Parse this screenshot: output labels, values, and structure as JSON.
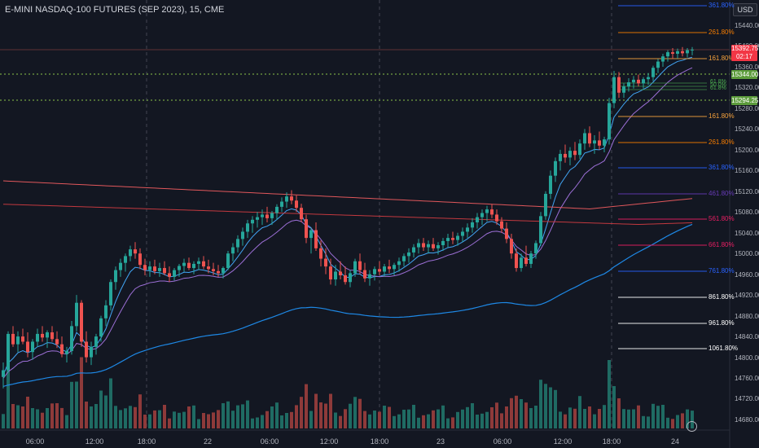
{
  "header": {
    "symbol": "E-MINI NASDAQ-100 FUTURES (SEP 2023), 15, CME",
    "currency": "USD"
  },
  "price_axis": {
    "ticks": [
      "15440.00",
      "15400.00",
      "15360.00",
      "15320.00",
      "15280.00",
      "15240.00",
      "15200.00",
      "15160.00",
      "15120.00",
      "15080.00",
      "15040.00",
      "15000.00",
      "14960.00",
      "14920.00",
      "14880.00",
      "14840.00",
      "14800.00",
      "14760.00",
      "14720.00",
      "14680.00"
    ],
    "last_price": "15392.75",
    "countdown": "02:17",
    "tag_upper": "15344.00",
    "tag_lower": "15294.25",
    "colors": {
      "last": "#f23645",
      "tag": "#5d9c3c"
    }
  },
  "time_axis": {
    "ticks": [
      "06:00",
      "12:00",
      "18:00",
      "22",
      "06:00",
      "12:00",
      "18:00",
      "23",
      "06:00",
      "12:00",
      "18:00",
      "24"
    ]
  },
  "fib_levels": [
    {
      "label": "361.80%",
      "color": "#2962ff"
    },
    {
      "label": "261.80%",
      "color": "#f57c00"
    },
    {
      "label": "161.80%",
      "color": "#f5a13c"
    },
    {
      "label": "61.8%",
      "color": "#4caf50"
    },
    {
      "label": "50.0%",
      "color": "#4caf50"
    },
    {
      "label": "61.8%",
      "color": "#4caf50"
    },
    {
      "label": "161.80%",
      "color": "#f5a13c"
    },
    {
      "label": "261.80%",
      "color": "#f57c00"
    },
    {
      "label": "361.80%",
      "color": "#2962ff"
    },
    {
      "label": "461.80%",
      "color": "#673ab7"
    },
    {
      "label": "561.80%",
      "color": "#e91e63"
    },
    {
      "label": "661.80%",
      "color": "#e91e63"
    },
    {
      "label": "761.80%",
      "color": "#2962ff"
    },
    {
      "label": "861.80%",
      "color": "#ffffff"
    },
    {
      "label": "961.80%",
      "color": "#ffffff"
    },
    {
      "label": "1061.80%",
      "color": "#ffffff"
    }
  ],
  "colors": {
    "background": "#131722",
    "up": "#26a69a",
    "down": "#ef5350",
    "vol_up": "#1f6b63",
    "vol_down": "#8e3a3a"
  },
  "series_data": [
    {
      "t": 0,
      "o": 14762,
      "h": 14790,
      "l": 14740,
      "c": 14775
    },
    {
      "t": 6,
      "o": 14775,
      "h": 14850,
      "l": 14770,
      "c": 14845
    },
    {
      "t": 12,
      "o": 14845,
      "h": 14860,
      "l": 14820,
      "c": 14825
    },
    {
      "t": 18,
      "o": 14825,
      "h": 14850,
      "l": 14810,
      "c": 14840
    },
    {
      "t": 24,
      "o": 14840,
      "h": 14855,
      "l": 14825,
      "c": 14830
    },
    {
      "t": 30,
      "o": 14830,
      "h": 14848,
      "l": 14800,
      "c": 14810
    },
    {
      "t": 36,
      "o": 14810,
      "h": 14835,
      "l": 14795,
      "c": 14830
    },
    {
      "t": 42,
      "o": 14830,
      "h": 14855,
      "l": 14820,
      "c": 14845
    },
    {
      "t": 48,
      "o": 14845,
      "h": 14860,
      "l": 14830,
      "c": 14838
    },
    {
      "t": 54,
      "o": 14838,
      "h": 14852,
      "l": 14818,
      "c": 14848
    },
    {
      "t": 60,
      "o": 14848,
      "h": 14860,
      "l": 14830,
      "c": 14835
    },
    {
      "t": 66,
      "o": 14835,
      "h": 14850,
      "l": 14818,
      "c": 14825
    },
    {
      "t": 72,
      "o": 14825,
      "h": 14840,
      "l": 14800,
      "c": 14806
    },
    {
      "t": 78,
      "o": 14806,
      "h": 14820,
      "l": 14790,
      "c": 14812
    },
    {
      "t": 84,
      "o": 14812,
      "h": 14870,
      "l": 14805,
      "c": 14860
    },
    {
      "t": 90,
      "o": 14860,
      "h": 14920,
      "l": 14850,
      "c": 14905
    },
    {
      "t": 96,
      "o": 14905,
      "h": 14910,
      "l": 14820,
      "c": 14830
    },
    {
      "t": 102,
      "o": 14830,
      "h": 14850,
      "l": 14790,
      "c": 14800
    },
    {
      "t": 108,
      "o": 14800,
      "h": 14830,
      "l": 14785,
      "c": 14820
    },
    {
      "t": 114,
      "o": 14820,
      "h": 14845,
      "l": 14805,
      "c": 14840
    },
    {
      "t": 120,
      "o": 14840,
      "h": 14880,
      "l": 14830,
      "c": 14875
    },
    {
      "t": 126,
      "o": 14875,
      "h": 14910,
      "l": 14860,
      "c": 14900
    },
    {
      "t": 132,
      "o": 14900,
      "h": 14950,
      "l": 14890,
      "c": 14945
    },
    {
      "t": 138,
      "o": 14945,
      "h": 14975,
      "l": 14930,
      "c": 14968
    },
    {
      "t": 144,
      "o": 14968,
      "h": 14990,
      "l": 14955,
      "c": 14982
    },
    {
      "t": 150,
      "o": 14982,
      "h": 15000,
      "l": 14965,
      "c": 14995
    },
    {
      "t": 156,
      "o": 14995,
      "h": 15015,
      "l": 14985,
      "c": 15008
    },
    {
      "t": 162,
      "o": 15008,
      "h": 15022,
      "l": 14990,
      "c": 15000
    },
    {
      "t": 168,
      "o": 15000,
      "h": 15010,
      "l": 14970,
      "c": 14978
    },
    {
      "t": 174,
      "o": 14978,
      "h": 14990,
      "l": 14958,
      "c": 14968
    },
    {
      "t": 180,
      "o": 14968,
      "h": 14985,
      "l": 14955,
      "c": 14975
    },
    {
      "t": 186,
      "o": 14975,
      "h": 14988,
      "l": 14960,
      "c": 14966
    },
    {
      "t": 192,
      "o": 14966,
      "h": 14982,
      "l": 14955,
      "c": 14972
    },
    {
      "t": 198,
      "o": 14972,
      "h": 14985,
      "l": 14958,
      "c": 14962
    },
    {
      "t": 204,
      "o": 14962,
      "h": 14975,
      "l": 14945,
      "c": 14955
    },
    {
      "t": 210,
      "o": 14955,
      "h": 14972,
      "l": 14948,
      "c": 14968
    },
    {
      "t": 216,
      "o": 14968,
      "h": 14980,
      "l": 14955,
      "c": 14976
    },
    {
      "t": 222,
      "o": 14976,
      "h": 14990,
      "l": 14965,
      "c": 14982
    },
    {
      "t": 228,
      "o": 14982,
      "h": 14992,
      "l": 14968,
      "c": 14972
    },
    {
      "t": 234,
      "o": 14972,
      "h": 14985,
      "l": 14960,
      "c": 14980
    },
    {
      "t": 240,
      "o": 14980,
      "h": 14992,
      "l": 14968,
      "c": 14985
    },
    {
      "t": 246,
      "o": 14985,
      "h": 14995,
      "l": 14970,
      "c": 14975
    },
    {
      "t": 252,
      "o": 14975,
      "h": 14988,
      "l": 14962,
      "c": 14970
    },
    {
      "t": 258,
      "o": 14970,
      "h": 14982,
      "l": 14958,
      "c": 14966
    },
    {
      "t": 264,
      "o": 14966,
      "h": 14978,
      "l": 14955,
      "c": 14962
    },
    {
      "t": 270,
      "o": 14962,
      "h": 14975,
      "l": 14952,
      "c": 14972
    },
    {
      "t": 276,
      "o": 14972,
      "h": 15005,
      "l": 14968,
      "c": 15000
    },
    {
      "t": 282,
      "o": 15000,
      "h": 15020,
      "l": 14985,
      "c": 15012
    },
    {
      "t": 288,
      "o": 15012,
      "h": 15035,
      "l": 15002,
      "c": 15028
    },
    {
      "t": 294,
      "o": 15028,
      "h": 15050,
      "l": 15015,
      "c": 15042
    },
    {
      "t": 300,
      "o": 15042,
      "h": 15065,
      "l": 15030,
      "c": 15058
    },
    {
      "t": 306,
      "o": 15058,
      "h": 15072,
      "l": 15040,
      "c": 15065
    },
    {
      "t": 312,
      "o": 15065,
      "h": 15080,
      "l": 15050,
      "c": 15070
    },
    {
      "t": 318,
      "o": 15070,
      "h": 15085,
      "l": 15055,
      "c": 15075
    },
    {
      "t": 324,
      "o": 15075,
      "h": 15090,
      "l": 15060,
      "c": 15068
    },
    {
      "t": 330,
      "o": 15068,
      "h": 15082,
      "l": 15055,
      "c": 15078
    },
    {
      "t": 336,
      "o": 15078,
      "h": 15095,
      "l": 15065,
      "c": 15090
    },
    {
      "t": 342,
      "o": 15090,
      "h": 15108,
      "l": 15080,
      "c": 15100
    },
    {
      "t": 348,
      "o": 15100,
      "h": 15118,
      "l": 15088,
      "c": 15110
    },
    {
      "t": 354,
      "o": 15110,
      "h": 15122,
      "l": 15095,
      "c": 15102
    },
    {
      "t": 360,
      "o": 15102,
      "h": 15112,
      "l": 15080,
      "c": 15088
    },
    {
      "t": 366,
      "o": 15088,
      "h": 15096,
      "l": 15060,
      "c": 15066
    },
    {
      "t": 372,
      "o": 15066,
      "h": 15075,
      "l": 15020,
      "c": 15030
    },
    {
      "t": 378,
      "o": 15030,
      "h": 15050,
      "l": 15000,
      "c": 15045
    },
    {
      "t": 384,
      "o": 15045,
      "h": 15060,
      "l": 15005,
      "c": 15010
    },
    {
      "t": 390,
      "o": 15010,
      "h": 15025,
      "l": 14975,
      "c": 14990
    },
    {
      "t": 396,
      "o": 14990,
      "h": 15010,
      "l": 14960,
      "c": 14975
    },
    {
      "t": 402,
      "o": 14975,
      "h": 14990,
      "l": 14940,
      "c": 14950
    },
    {
      "t": 408,
      "o": 14950,
      "h": 14978,
      "l": 14938,
      "c": 14965
    },
    {
      "t": 414,
      "o": 14965,
      "h": 14985,
      "l": 14950,
      "c": 14958
    },
    {
      "t": 420,
      "o": 14958,
      "h": 14975,
      "l": 14940,
      "c": 14945
    },
    {
      "t": 426,
      "o": 14945,
      "h": 14968,
      "l": 14935,
      "c": 14962
    },
    {
      "t": 432,
      "o": 14962,
      "h": 14990,
      "l": 14955,
      "c": 14985
    },
    {
      "t": 438,
      "o": 14985,
      "h": 15000,
      "l": 14960,
      "c": 14968
    },
    {
      "t": 444,
      "o": 14968,
      "h": 14982,
      "l": 14945,
      "c": 14952
    },
    {
      "t": 450,
      "o": 14952,
      "h": 14968,
      "l": 14938,
      "c": 14960
    },
    {
      "t": 456,
      "o": 14960,
      "h": 14975,
      "l": 14948,
      "c": 14970
    },
    {
      "t": 462,
      "o": 14970,
      "h": 14985,
      "l": 14958,
      "c": 14965
    },
    {
      "t": 468,
      "o": 14965,
      "h": 14980,
      "l": 14955,
      "c": 14975
    },
    {
      "t": 474,
      "o": 14975,
      "h": 14988,
      "l": 14962,
      "c": 14970
    },
    {
      "t": 480,
      "o": 14970,
      "h": 14982,
      "l": 14958,
      "c": 14978
    },
    {
      "t": 486,
      "o": 14978,
      "h": 14992,
      "l": 14965,
      "c": 14985
    },
    {
      "t": 492,
      "o": 14985,
      "h": 15000,
      "l": 14975,
      "c": 14995
    },
    {
      "t": 498,
      "o": 14995,
      "h": 15010,
      "l": 14982,
      "c": 15002
    },
    {
      "t": 504,
      "o": 15002,
      "h": 15018,
      "l": 14992,
      "c": 15012
    },
    {
      "t": 510,
      "o": 15012,
      "h": 15028,
      "l": 15000,
      "c": 15020
    },
    {
      "t": 516,
      "o": 15020,
      "h": 15030,
      "l": 15005,
      "c": 15012
    },
    {
      "t": 522,
      "o": 15012,
      "h": 15025,
      "l": 15000,
      "c": 15018
    },
    {
      "t": 528,
      "o": 15018,
      "h": 15030,
      "l": 15005,
      "c": 15010
    },
    {
      "t": 534,
      "o": 15010,
      "h": 15022,
      "l": 14998,
      "c": 15016
    },
    {
      "t": 540,
      "o": 15016,
      "h": 15030,
      "l": 15005,
      "c": 15024
    },
    {
      "t": 546,
      "o": 15024,
      "h": 15038,
      "l": 15012,
      "c": 15030
    },
    {
      "t": 552,
      "o": 15030,
      "h": 15042,
      "l": 15018,
      "c": 15026
    },
    {
      "t": 558,
      "o": 15026,
      "h": 15040,
      "l": 15015,
      "c": 15034
    },
    {
      "t": 564,
      "o": 15034,
      "h": 15050,
      "l": 15022,
      "c": 15042
    },
    {
      "t": 570,
      "o": 15042,
      "h": 15058,
      "l": 15030,
      "c": 15050
    },
    {
      "t": 576,
      "o": 15050,
      "h": 15068,
      "l": 15040,
      "c": 15060
    },
    {
      "t": 582,
      "o": 15060,
      "h": 15078,
      "l": 15048,
      "c": 15070
    },
    {
      "t": 588,
      "o": 15070,
      "h": 15085,
      "l": 15055,
      "c": 15078
    },
    {
      "t": 594,
      "o": 15078,
      "h": 15092,
      "l": 15062,
      "c": 15085
    },
    {
      "t": 600,
      "o": 15085,
      "h": 15095,
      "l": 15068,
      "c": 15075
    },
    {
      "t": 606,
      "o": 15075,
      "h": 15085,
      "l": 15055,
      "c": 15062
    },
    {
      "t": 612,
      "o": 15062,
      "h": 15070,
      "l": 15040,
      "c": 15048
    },
    {
      "t": 618,
      "o": 15048,
      "h": 15060,
      "l": 15020,
      "c": 15028
    },
    {
      "t": 624,
      "o": 15028,
      "h": 15038,
      "l": 14990,
      "c": 15000
    },
    {
      "t": 630,
      "o": 15000,
      "h": 15010,
      "l": 14965,
      "c": 14972
    },
    {
      "t": 636,
      "o": 14972,
      "h": 15000,
      "l": 14965,
      "c": 14992
    },
    {
      "t": 642,
      "o": 14992,
      "h": 15015,
      "l": 14975,
      "c": 14980
    },
    {
      "t": 648,
      "o": 14980,
      "h": 15005,
      "l": 14972,
      "c": 15000
    },
    {
      "t": 654,
      "o": 15000,
      "h": 15025,
      "l": 14990,
      "c": 15020
    },
    {
      "t": 660,
      "o": 15020,
      "h": 15080,
      "l": 15015,
      "c": 15072
    },
    {
      "t": 666,
      "o": 15072,
      "h": 15120,
      "l": 15065,
      "c": 15115
    },
    {
      "t": 672,
      "o": 15115,
      "h": 15160,
      "l": 15105,
      "c": 15150
    },
    {
      "t": 678,
      "o": 15150,
      "h": 15185,
      "l": 15138,
      "c": 15178
    },
    {
      "t": 684,
      "o": 15178,
      "h": 15200,
      "l": 15160,
      "c": 15192
    },
    {
      "t": 690,
      "o": 15192,
      "h": 15210,
      "l": 15175,
      "c": 15185
    },
    {
      "t": 696,
      "o": 15185,
      "h": 15205,
      "l": 15170,
      "c": 15198
    },
    {
      "t": 702,
      "o": 15198,
      "h": 15215,
      "l": 15180,
      "c": 15190
    },
    {
      "t": 708,
      "o": 15190,
      "h": 15220,
      "l": 15182,
      "c": 15212
    },
    {
      "t": 714,
      "o": 15212,
      "h": 15240,
      "l": 15200,
      "c": 15232
    },
    {
      "t": 720,
      "o": 15232,
      "h": 15245,
      "l": 15205,
      "c": 15212
    },
    {
      "t": 726,
      "o": 15212,
      "h": 15228,
      "l": 15192,
      "c": 15218
    },
    {
      "t": 732,
      "o": 15218,
      "h": 15235,
      "l": 15200,
      "c": 15208
    },
    {
      "t": 738,
      "o": 15208,
      "h": 15225,
      "l": 15195,
      "c": 15220
    },
    {
      "t": 744,
      "o": 15220,
      "h": 15300,
      "l": 15210,
      "c": 15290
    },
    {
      "t": 750,
      "o": 15290,
      "h": 15352,
      "l": 15280,
      "c": 15340
    },
    {
      "t": 756,
      "o": 15340,
      "h": 15350,
      "l": 15300,
      "c": 15310
    },
    {
      "t": 762,
      "o": 15310,
      "h": 15328,
      "l": 15300,
      "c": 15322
    },
    {
      "t": 768,
      "o": 15322,
      "h": 15338,
      "l": 15312,
      "c": 15330
    },
    {
      "t": 774,
      "o": 15330,
      "h": 15342,
      "l": 15318,
      "c": 15335
    },
    {
      "t": 780,
      "o": 15335,
      "h": 15345,
      "l": 15322,
      "c": 15328
    },
    {
      "t": 786,
      "o": 15328,
      "h": 15340,
      "l": 15318,
      "c": 15336
    },
    {
      "t": 792,
      "o": 15336,
      "h": 15348,
      "l": 15325,
      "c": 15340
    },
    {
      "t": 798,
      "o": 15340,
      "h": 15362,
      "l": 15332,
      "c": 15358
    },
    {
      "t": 804,
      "o": 15358,
      "h": 15375,
      "l": 15348,
      "c": 15370
    },
    {
      "t": 810,
      "o": 15370,
      "h": 15385,
      "l": 15360,
      "c": 15380
    },
    {
      "t": 816,
      "o": 15380,
      "h": 15392,
      "l": 15370,
      "c": 15388
    },
    {
      "t": 822,
      "o": 15388,
      "h": 15396,
      "l": 15375,
      "c": 15385
    },
    {
      "t": 828,
      "o": 15385,
      "h": 15395,
      "l": 15376,
      "c": 15390
    },
    {
      "t": 834,
      "o": 15390,
      "h": 15398,
      "l": 15380,
      "c": 15386
    },
    {
      "t": 840,
      "o": 15386,
      "h": 15396,
      "l": 15378,
      "c": 15392
    },
    {
      "t": 846,
      "o": 15392,
      "h": 15398,
      "l": 15382,
      "c": 15393
    }
  ]
}
